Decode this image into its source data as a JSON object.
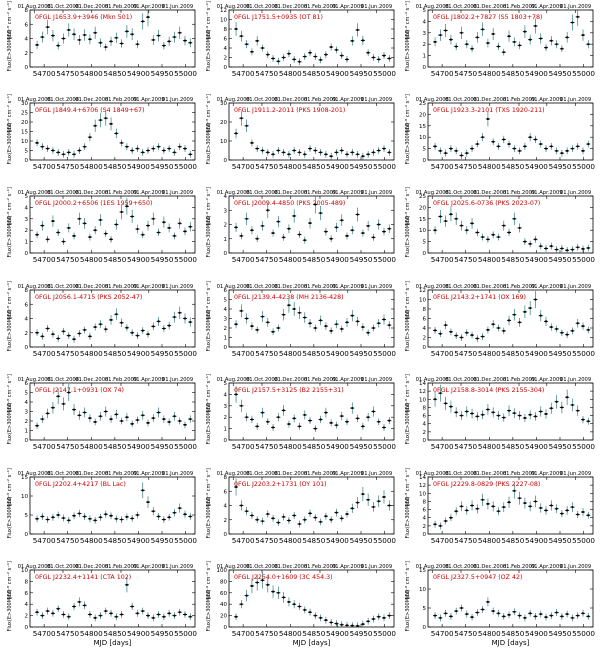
{
  "figure": {
    "top_axis_dates": [
      "01.Aug.2008",
      "01.Oct.2008",
      "01.Dec.2008",
      "01.Feb.2009",
      "01.Apr.2009",
      "01.Jun.2009"
    ],
    "top_axis_mjd": [
      54679,
      54740,
      54801,
      54863,
      54922,
      54983
    ],
    "xlabel": "MJD  [days]",
    "ylabel": "Flux(E>300MeV)",
    "yunit": "[10⁻⁸ cm⁻² s⁻¹]",
    "xticks": [
      54700,
      54750,
      54800,
      54850,
      54900,
      54950,
      55000
    ],
    "xlim": [
      54670,
      55020
    ],
    "label_color": "#cc0000",
    "point_color": "#000000",
    "errorbar_color": "#2f7f7f"
  },
  "chart_data": [
    {
      "type": "scatter",
      "source": "0FGL J1653.9+3946",
      "name": "(Mkn 501)",
      "ylim": [
        0,
        8
      ],
      "yticks": [
        0,
        2,
        4,
        6,
        8
      ],
      "xlabel": "",
      "y": [
        3.1,
        4.2,
        5.6,
        4.4,
        3.0,
        4.0,
        5.2,
        4.6,
        3.8,
        4.5,
        3.9,
        4.8,
        3.4,
        2.8,
        3.6,
        4.1,
        3.3,
        5.0,
        4.6,
        3.2,
        6.4,
        7.0,
        3.8,
        4.4,
        3.0,
        3.6,
        4.2,
        4.8,
        3.7,
        3.4
      ]
    },
    {
      "type": "scatter",
      "source": "0FGL J1751.5+0935",
      "name": "(OT 81)",
      "ylim": [
        0,
        12
      ],
      "yticks": [
        0,
        2,
        4,
        6,
        8,
        10,
        12
      ],
      "xlabel": "",
      "y": [
        8.0,
        6.5,
        4.8,
        3.2,
        5.5,
        4.0,
        2.6,
        1.8,
        1.2,
        2.0,
        2.8,
        1.6,
        1.1,
        2.2,
        3.0,
        2.2,
        1.5,
        2.6,
        4.2,
        3.6,
        2.4,
        1.6,
        5.5,
        7.8,
        5.6,
        3.0,
        2.0,
        1.6,
        2.4,
        1.8
      ]
    },
    {
      "type": "scatter",
      "source": "0FGL J1802.2+7827",
      "name": "(S5 1803+78)",
      "ylim": [
        0,
        5
      ],
      "yticks": [
        0,
        1,
        2,
        3,
        4,
        5
      ],
      "xlabel": "",
      "y": [
        2.2,
        2.8,
        3.2,
        2.4,
        1.8,
        3.0,
        2.0,
        1.6,
        2.6,
        3.3,
        2.1,
        2.9,
        1.8,
        1.3,
        2.7,
        2.2,
        1.9,
        3.1,
        2.4,
        3.6,
        2.5,
        1.7,
        2.3,
        2.0,
        1.6,
        2.6,
        3.9,
        4.4,
        2.8,
        2.0
      ]
    },
    {
      "type": "scatter",
      "source": "0FGL J1849.4+6706",
      "name": "(S4 1849+67)",
      "ylim": [
        0,
        30
      ],
      "yticks": [
        0,
        5,
        10,
        15,
        20,
        25,
        30
      ],
      "xlabel": "",
      "y": [
        9,
        7,
        6,
        5,
        4,
        3,
        4,
        3,
        5,
        7,
        12,
        18,
        21,
        22,
        19,
        14,
        9,
        7,
        5,
        6,
        4,
        5,
        6,
        7,
        5,
        6,
        4,
        7,
        6,
        3
      ]
    },
    {
      "type": "scatter",
      "source": "0FGL J1911.2-2011",
      "name": "(PKS 1908-201)",
      "ylim": [
        0,
        30
      ],
      "yticks": [
        0,
        10,
        20,
        30
      ],
      "xlabel": "",
      "y": [
        14,
        22,
        18,
        9,
        6,
        5,
        4,
        3,
        5,
        4,
        3,
        5,
        4,
        3,
        6,
        5,
        4,
        3,
        2,
        4,
        5,
        3,
        4,
        3,
        2,
        3,
        4,
        5,
        6,
        4
      ]
    },
    {
      "type": "scatter",
      "source": "0FGL J1923.3-2101",
      "name": "(TXS 1920-211)",
      "ylim": [
        0,
        25
      ],
      "yticks": [
        0,
        5,
        10,
        15,
        20,
        25
      ],
      "xlabel": "",
      "y": [
        6,
        4,
        3,
        5,
        4,
        2,
        3,
        5,
        7,
        10,
        18,
        8,
        6,
        9,
        7,
        5,
        4,
        6,
        10,
        9,
        7,
        5,
        6,
        4,
        3,
        4,
        5,
        6,
        4,
        7
      ]
    },
    {
      "type": "scatter",
      "source": "0FGL J2000.2+6506",
      "name": "(1ES 1959+650)",
      "ylim": [
        0,
        5
      ],
      "yticks": [
        0,
        1,
        2,
        3,
        4,
        5
      ],
      "xlabel": "",
      "y": [
        1.6,
        2.4,
        1.2,
        2.8,
        1.8,
        1.0,
        2.2,
        1.5,
        3.0,
        2.6,
        1.4,
        2.0,
        2.9,
        1.7,
        1.2,
        2.5,
        3.6,
        4.1,
        3.2,
        2.1,
        1.6,
        2.4,
        3.0,
        1.8,
        2.7,
        2.2,
        1.5,
        2.6,
        1.9,
        2.3
      ]
    },
    {
      "type": "scatter",
      "source": "0FGL J2009.4-4850",
      "name": "(PKS 2005-489)",
      "ylim": [
        0,
        4
      ],
      "yticks": [
        0,
        1,
        2,
        3,
        4
      ],
      "xlabel": "",
      "y": [
        1.8,
        1.2,
        2.4,
        1.6,
        1.0,
        1.9,
        3.0,
        1.4,
        2.2,
        1.1,
        1.7,
        2.6,
        1.3,
        0.9,
        2.1,
        3.4,
        2.8,
        1.5,
        1.0,
        1.8,
        2.3,
        1.2,
        1.6,
        2.7,
        1.4,
        1.9,
        1.1,
        2.0,
        1.5,
        1.7
      ]
    },
    {
      "type": "scatter",
      "source": "0FGL J2025.6-0736",
      "name": "(PKS 2023-07)",
      "ylim": [
        0,
        25
      ],
      "yticks": [
        0,
        5,
        10,
        15,
        20,
        25
      ],
      "xlabel": "",
      "y": [
        10,
        16,
        14,
        17,
        15,
        12,
        10,
        13,
        9,
        7,
        6,
        8,
        7,
        12,
        9,
        15,
        11,
        5,
        4,
        6,
        3,
        2,
        3,
        1.5,
        2,
        1.2,
        1.5,
        2.5,
        1.8,
        2.2
      ]
    },
    {
      "type": "scatter",
      "source": "0FGL J2056.1-4715",
      "name": "(PKS 2052-47)",
      "ylim": [
        0,
        8
      ],
      "yticks": [
        0,
        2,
        4,
        6,
        8
      ],
      "xlabel": "",
      "y": [
        2.0,
        1.5,
        2.6,
        1.8,
        1.2,
        2.2,
        1.6,
        1.1,
        1.9,
        2.4,
        1.5,
        2.8,
        3.2,
        2.5,
        3.8,
        4.6,
        3.4,
        2.7,
        2.0,
        1.6,
        2.3,
        1.8,
        2.9,
        3.6,
        2.6,
        3.0,
        4.2,
        4.8,
        4.0,
        3.5
      ]
    },
    {
      "type": "scatter",
      "source": "0FGL J2139.4-4238",
      "name": "(MH 2136-428)",
      "ylim": [
        0,
        6
      ],
      "yticks": [
        0,
        1,
        2,
        3,
        4,
        5,
        6
      ],
      "xlabel": "",
      "y": [
        2.4,
        3.8,
        3.0,
        2.2,
        1.8,
        3.2,
        2.6,
        1.6,
        2.0,
        3.4,
        4.4,
        4.0,
        3.6,
        3.1,
        2.5,
        2.0,
        2.8,
        2.2,
        1.7,
        2.4,
        1.9,
        2.6,
        3.3,
        2.7,
        2.1,
        1.5,
        2.0,
        2.5,
        2.9,
        2.3
      ]
    },
    {
      "type": "scatter",
      "source": "0FGL J2143.2+1741",
      "name": "(OX 169)",
      "ylim": [
        0,
        12
      ],
      "yticks": [
        0,
        2,
        4,
        6,
        8,
        10,
        12
      ],
      "xlabel": "",
      "y": [
        3.5,
        2.8,
        4.6,
        3.2,
        2.4,
        2.0,
        3.0,
        2.5,
        1.8,
        2.2,
        3.6,
        4.8,
        4.0,
        3.4,
        5.6,
        6.8,
        5.2,
        7.4,
        8.2,
        10.0,
        6.6,
        5.4,
        4.2,
        3.8,
        3.0,
        2.6,
        3.4,
        5.0,
        4.4,
        3.6
      ]
    },
    {
      "type": "scatter",
      "source": "0FGL J2147.1+0931",
      "name": "(OX 74)",
      "ylim": [
        0,
        6
      ],
      "yticks": [
        0,
        1,
        2,
        3,
        4,
        5,
        6
      ],
      "xlabel": "",
      "y": [
        1.5,
        2.2,
        2.8,
        3.4,
        4.6,
        3.8,
        5.0,
        3.2,
        2.6,
        2.9,
        2.3,
        1.9,
        2.5,
        3.0,
        2.2,
        2.7,
        2.0,
        2.4,
        1.7,
        2.1,
        2.6,
        1.8,
        2.3,
        2.9,
        2.2,
        1.9,
        2.5,
        2.0,
        1.6,
        2.2
      ]
    },
    {
      "type": "scatter",
      "source": "0FGL J2157.5+3125",
      "name": "(B2 2155+31)",
      "ylim": [
        0,
        5
      ],
      "yticks": [
        0,
        1,
        2,
        3,
        4,
        5
      ],
      "xlabel": "",
      "y": [
        4.0,
        3.0,
        2.0,
        1.8,
        1.2,
        2.4,
        1.6,
        1.1,
        2.0,
        2.6,
        1.4,
        1.9,
        1.2,
        2.2,
        1.7,
        1.0,
        1.8,
        2.4,
        1.5,
        1.3,
        2.1,
        1.6,
        2.8,
        1.9,
        1.2,
        2.0,
        2.5,
        1.6,
        1.1,
        1.7
      ]
    },
    {
      "type": "scatter",
      "source": "0FGL J2158.8-3014",
      "name": "(PKS 2155-304)",
      "ylim": [
        0,
        14
      ],
      "yticks": [
        0,
        2,
        4,
        6,
        8,
        10,
        12,
        14
      ],
      "xlabel": "",
      "y": [
        10.0,
        11.5,
        9.0,
        8.2,
        6.8,
        6.0,
        7.0,
        6.5,
        5.8,
        6.2,
        7.5,
        6.8,
        6.0,
        5.5,
        7.2,
        6.6,
        6.0,
        5.4,
        6.2,
        5.8,
        7.0,
        6.4,
        7.8,
        9.4,
        8.0,
        10.5,
        8.6,
        7.2,
        5.0,
        4.6
      ]
    },
    {
      "type": "scatter",
      "source": "0FGL J2202.4+4217",
      "name": "(BL Lac)",
      "ylim": [
        0,
        15
      ],
      "yticks": [
        0,
        5,
        10,
        15
      ],
      "xlabel": "",
      "y": [
        4.0,
        4.6,
        3.8,
        4.4,
        5.0,
        4.2,
        3.6,
        4.8,
        5.4,
        4.6,
        4.0,
        3.6,
        4.4,
        5.2,
        4.8,
        4.0,
        3.8,
        4.5,
        4.1,
        5.0,
        11.5,
        8.4,
        6.0,
        4.6,
        3.8,
        4.4,
        5.6,
        6.8,
        5.2,
        4.6
      ]
    },
    {
      "type": "scatter",
      "source": "0FGL J2203.2+1731",
      "name": "(OY 101)",
      "ylim": [
        0,
        8
      ],
      "yticks": [
        0,
        2,
        4,
        6,
        8
      ],
      "xlabel": "",
      "y": [
        6.6,
        4.0,
        3.2,
        2.6,
        2.0,
        1.8,
        2.8,
        2.2,
        1.6,
        2.4,
        1.9,
        2.6,
        1.4,
        2.0,
        2.9,
        2.3,
        1.7,
        2.5,
        2.0,
        3.0,
        2.2,
        2.8,
        3.6,
        4.4,
        5.6,
        4.8,
        3.8,
        4.6,
        5.2,
        4.0
      ]
    },
    {
      "type": "scatter",
      "source": "0FGL J2229.8-0829",
      "name": "(PKS 2227-08)",
      "ylim": [
        0,
        14
      ],
      "yticks": [
        0,
        2,
        4,
        6,
        8,
        10,
        12,
        14
      ],
      "xlabel": "",
      "y": [
        2.4,
        2.0,
        3.2,
        4.0,
        5.6,
        6.8,
        5.8,
        7.0,
        6.2,
        8.4,
        7.4,
        6.8,
        5.6,
        6.6,
        7.8,
        10.6,
        8.8,
        7.6,
        6.8,
        8.0,
        6.4,
        5.8,
        7.0,
        6.2,
        5.0,
        5.8,
        6.6,
        4.8,
        5.4,
        4.6
      ]
    },
    {
      "type": "scatter",
      "source": "0FGL J2232.4+1141",
      "name": "(CTA 102)",
      "ylim": [
        0,
        10
      ],
      "yticks": [
        0,
        2,
        4,
        6,
        8,
        10
      ],
      "xlabel": "MJD  [days]",
      "y": [
        2.6,
        2.0,
        2.8,
        2.4,
        3.2,
        2.2,
        1.8,
        3.6,
        4.4,
        3.8,
        2.2,
        1.6,
        2.0,
        2.8,
        2.4,
        1.8,
        2.2,
        7.4,
        3.6,
        2.4,
        2.8,
        2.0,
        1.6,
        2.2,
        1.8,
        2.4,
        2.0,
        2.6,
        2.2,
        1.8
      ]
    },
    {
      "type": "scatter",
      "source": "0FGL J2254.0+1609",
      "name": "(3C 454.3)",
      "ylim": [
        0,
        100
      ],
      "yticks": [
        0,
        20,
        40,
        60,
        80,
        100
      ],
      "xlabel": "MJD  [days]",
      "y": [
        18,
        40,
        55,
        72,
        78,
        82,
        74,
        62,
        60,
        52,
        44,
        40,
        36,
        30,
        26,
        20,
        16,
        12,
        8,
        6,
        4,
        3,
        2.5,
        2,
        5,
        10,
        14,
        18,
        16,
        20
      ]
    },
    {
      "type": "scatter",
      "source": "0FGL J2327.5+0947",
      "name": "(OZ 42)",
      "ylim": [
        0,
        15
      ],
      "yticks": [
        0,
        5,
        10,
        15
      ],
      "xlabel": "MJD  [days]",
      "y": [
        3.0,
        2.4,
        3.6,
        2.8,
        4.2,
        5.0,
        3.4,
        2.6,
        3.8,
        4.6,
        6.6,
        4.2,
        3.6,
        2.8,
        3.2,
        4.0,
        3.0,
        2.4,
        3.6,
        2.8,
        3.4,
        2.6,
        3.0,
        3.8,
        2.8,
        3.4,
        2.4,
        3.0,
        3.6,
        2.8
      ]
    }
  ]
}
